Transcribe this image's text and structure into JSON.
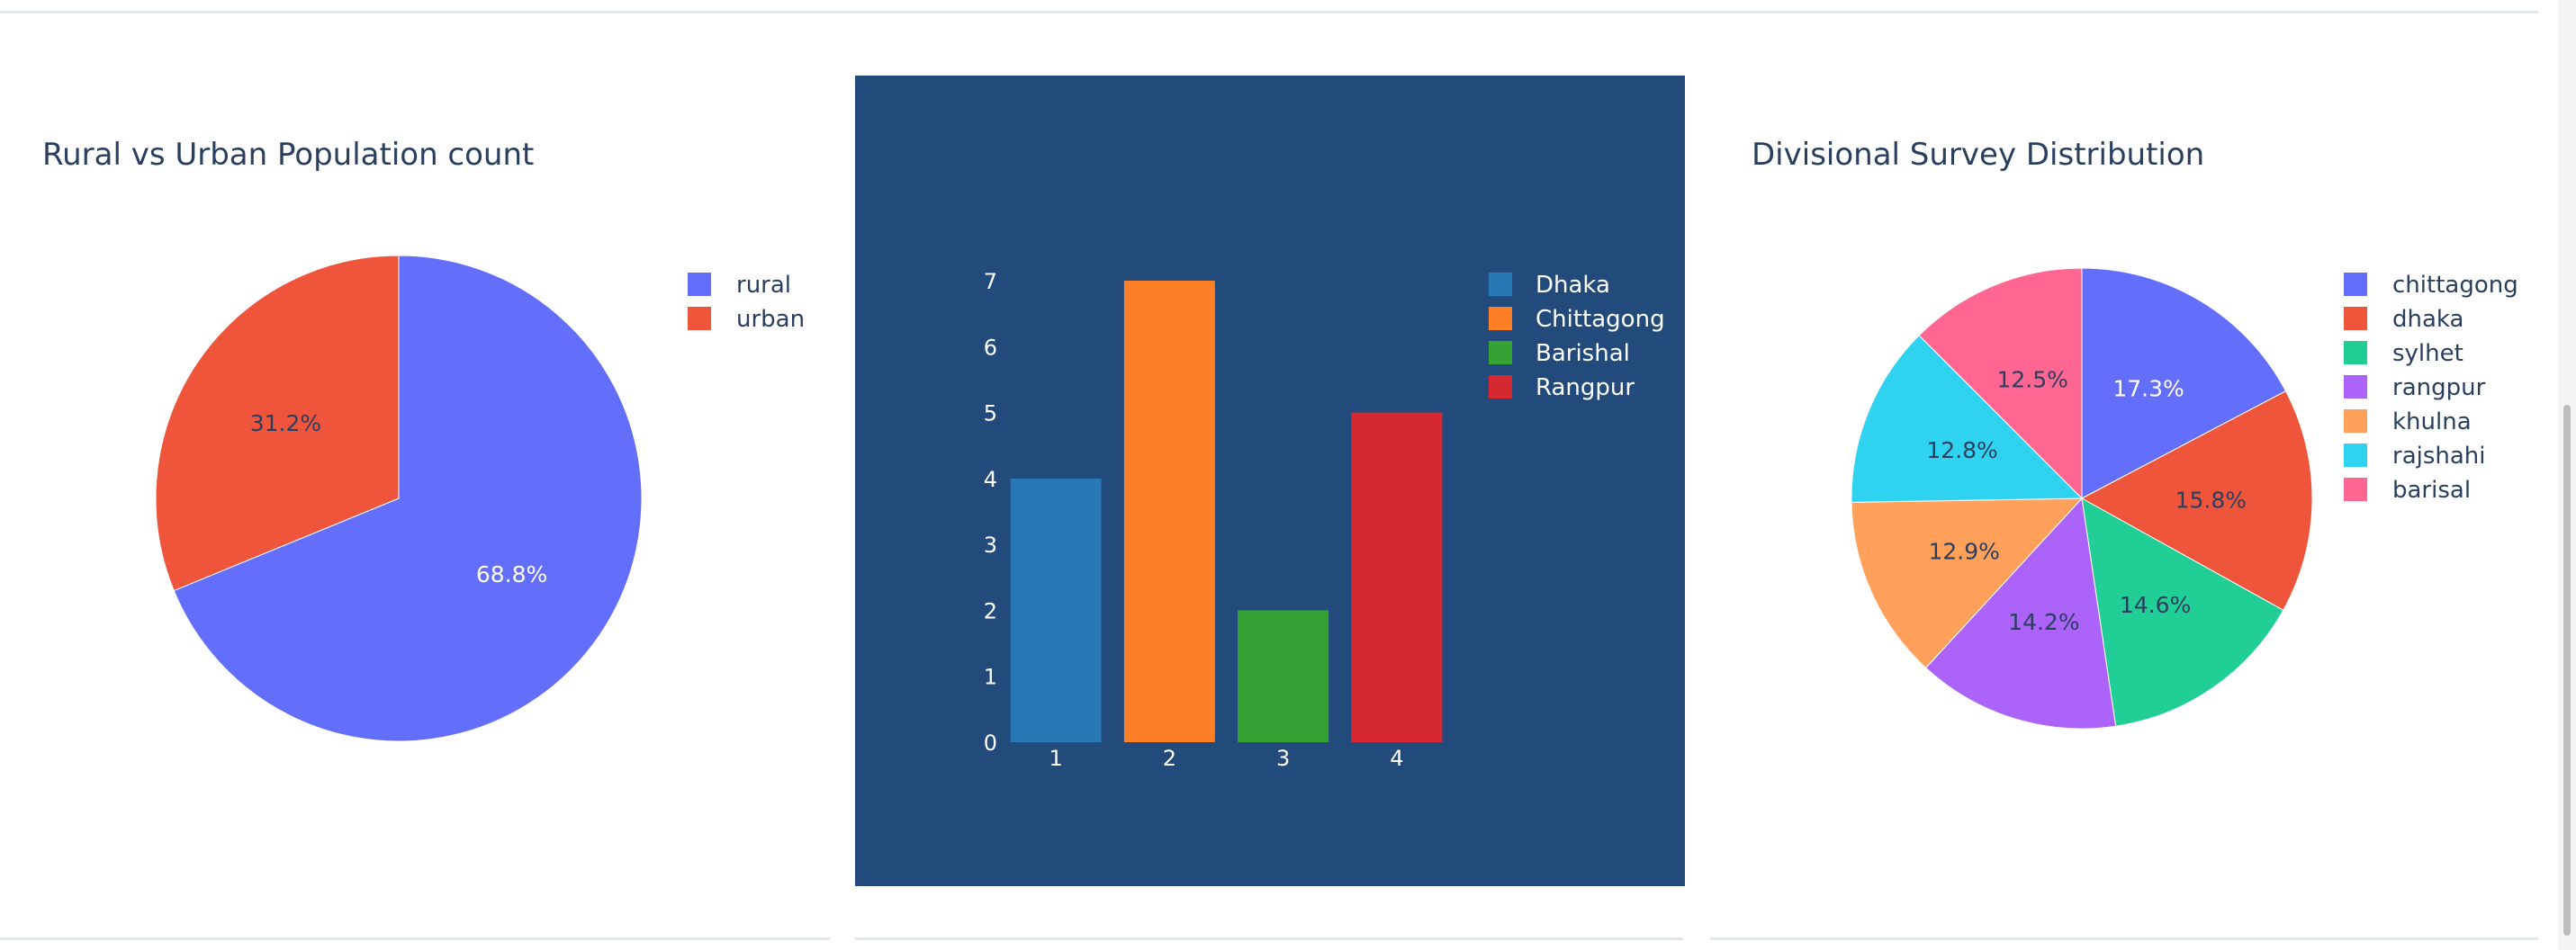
{
  "chart_data": [
    {
      "type": "pie",
      "title": "Rural vs Urban Population count",
      "labels": [
        "rural",
        "urban"
      ],
      "values": [
        68.8,
        31.2
      ],
      "text": [
        "68.8%",
        "31.2%"
      ],
      "colors": [
        "#636efa",
        "#ef553b"
      ],
      "legend": "top-right"
    },
    {
      "type": "bar",
      "title": "",
      "categories": [
        "1",
        "2",
        "3",
        "4"
      ],
      "series": [
        {
          "name": "Dhaka",
          "x": "1",
          "value": 4,
          "color": "#2878b5"
        },
        {
          "name": "Chittagong",
          "x": "2",
          "value": 7,
          "color": "#fd7f28"
        },
        {
          "name": "Barishal",
          "x": "3",
          "value": 2,
          "color": "#36a135"
        },
        {
          "name": "Rangpur",
          "x": "4",
          "value": 5,
          "color": "#d62830"
        }
      ],
      "yticks": [
        "0",
        "1",
        "2",
        "3",
        "4",
        "5",
        "6",
        "7"
      ],
      "ylim": [
        0,
        7
      ],
      "grid": false,
      "background": "#224a7b",
      "legend": "top-right"
    },
    {
      "type": "pie",
      "title": "Divisional Survey Distribution",
      "labels": [
        "chittagong",
        "dhaka",
        "sylhet",
        "rangpur",
        "khulna",
        "rajshahi",
        "barisal"
      ],
      "values": [
        17.3,
        15.8,
        14.6,
        14.2,
        12.9,
        12.8,
        12.5
      ],
      "text": [
        "17.3%",
        "15.8%",
        "14.6%",
        "14.2%",
        "12.9%",
        "12.8%",
        "12.5%"
      ],
      "colors": [
        "#636efa",
        "#ef553b",
        "#21ce96",
        "#ab63fa",
        "#ffa15a",
        "#2fd3f0",
        "#ff6692"
      ],
      "legend": "top-right"
    }
  ]
}
